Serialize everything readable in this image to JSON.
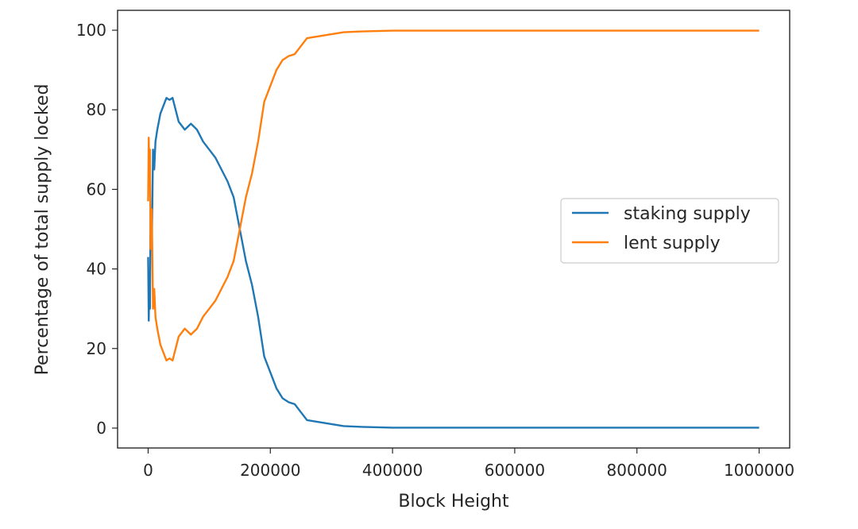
{
  "chart_data": {
    "type": "line",
    "title": "",
    "xlabel": "Block Height",
    "ylabel": "Percentage of total supply locked",
    "xlim": [
      -50000,
      1050000
    ],
    "ylim": [
      -5,
      105
    ],
    "xticks": [
      0,
      200000,
      400000,
      600000,
      800000,
      1000000
    ],
    "xtick_labels": [
      "0",
      "200000",
      "400000",
      "600000",
      "800000",
      "1000000"
    ],
    "yticks": [
      0,
      20,
      40,
      60,
      80,
      100
    ],
    "ytick_labels": [
      "0",
      "20",
      "40",
      "60",
      "80",
      "100"
    ],
    "grid": false,
    "legend_placement": "center-right",
    "series": [
      {
        "name": "staking supply",
        "color": "#1f77b4",
        "x": [
          0,
          1000,
          2000,
          3000,
          4000,
          6000,
          8000,
          10000,
          12000,
          15000,
          20000,
          25000,
          30000,
          35000,
          40000,
          45000,
          50000,
          60000,
          70000,
          80000,
          90000,
          100000,
          110000,
          120000,
          130000,
          140000,
          150000,
          160000,
          170000,
          180000,
          190000,
          200000,
          210000,
          220000,
          230000,
          240000,
          250000,
          260000,
          280000,
          300000,
          320000,
          350000,
          400000,
          450000,
          500000,
          600000,
          700000,
          800000,
          900000,
          1000000
        ],
        "y": [
          43,
          27,
          35,
          30,
          55,
          45,
          70,
          65,
          72,
          75,
          79,
          81,
          83,
          82.5,
          83,
          80,
          77,
          75,
          76.5,
          75,
          72,
          70,
          68,
          65,
          62,
          58,
          50,
          42,
          36,
          28,
          18,
          14,
          10,
          7.5,
          6.5,
          6,
          4,
          2,
          1.5,
          1,
          0.5,
          0.3,
          0.1,
          0.1,
          0.1,
          0.1,
          0.1,
          0.1,
          0.1,
          0.1
        ]
      },
      {
        "name": "lent supply",
        "color": "#ff7f0e",
        "x": [
          0,
          1000,
          2000,
          3000,
          4000,
          6000,
          8000,
          10000,
          12000,
          15000,
          20000,
          25000,
          30000,
          35000,
          40000,
          45000,
          50000,
          60000,
          70000,
          80000,
          90000,
          100000,
          110000,
          120000,
          130000,
          140000,
          150000,
          160000,
          170000,
          180000,
          190000,
          200000,
          210000,
          220000,
          230000,
          240000,
          250000,
          260000,
          280000,
          300000,
          320000,
          350000,
          400000,
          450000,
          500000,
          600000,
          700000,
          800000,
          900000,
          1000000
        ],
        "y": [
          57,
          73,
          65,
          70,
          45,
          55,
          30,
          35,
          28,
          25,
          21,
          19,
          17,
          17.5,
          17,
          20,
          23,
          25,
          23.5,
          25,
          28,
          30,
          32,
          35,
          38,
          42,
          50,
          58,
          64,
          72,
          82,
          86,
          90,
          92.5,
          93.5,
          94,
          96,
          98,
          98.5,
          99,
          99.5,
          99.7,
          99.9,
          99.9,
          99.9,
          99.9,
          99.9,
          99.9,
          99.9,
          99.9
        ]
      }
    ]
  }
}
